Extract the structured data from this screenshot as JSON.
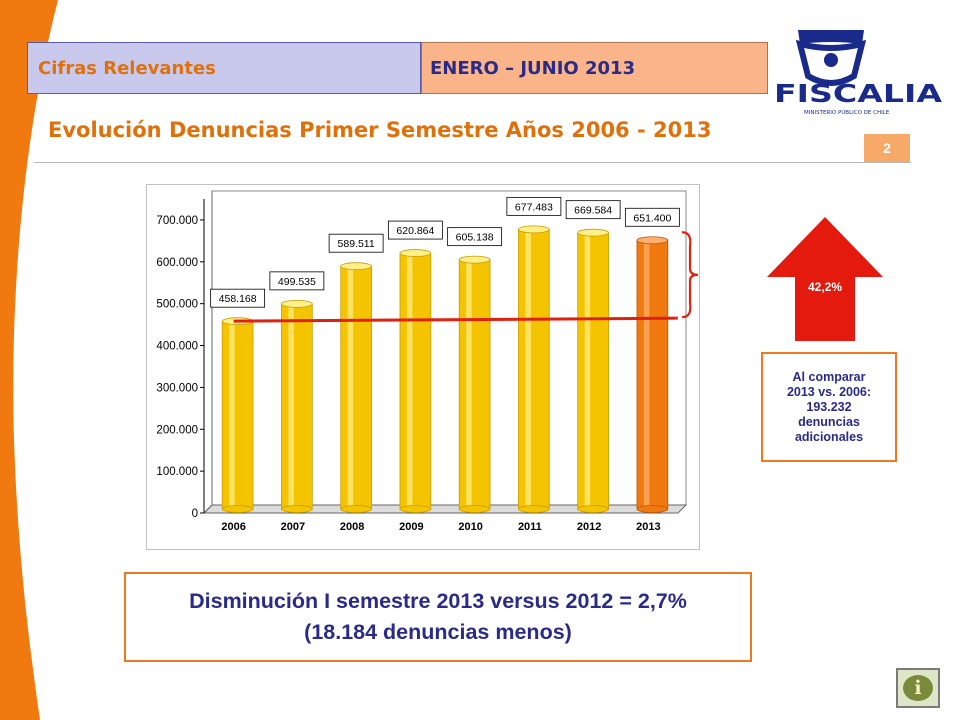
{
  "header": {
    "section_label": "Cifras Relevantes",
    "period_label": "ENERO – JUNIO 2013",
    "section_bg": "#c9c9ee",
    "period_bg": "#f9b48a"
  },
  "logo": {
    "name": "FISCALIA",
    "subtitle": "MINISTERIO PÚBLICO DE CHILE",
    "color": "#1a2a8a"
  },
  "page": {
    "title": "Evolución Denuncias Primer Semestre Años 2006 - 2013",
    "number": "2"
  },
  "chart_data": {
    "type": "bar",
    "categories": [
      "2006",
      "2007",
      "2008",
      "2009",
      "2010",
      "2011",
      "2012",
      "2013"
    ],
    "values": [
      458168,
      499535,
      589511,
      620864,
      605138,
      677483,
      669584,
      651400
    ],
    "value_labels": [
      "458.168",
      "499.535",
      "589.511",
      "620.864",
      "605.138",
      "677.483",
      "669.584",
      "651.400"
    ],
    "y_ticks": [
      {
        "value": 0,
        "label": "0"
      },
      {
        "value": 100000,
        "label": "100.000"
      },
      {
        "value": 200000,
        "label": "200.000"
      },
      {
        "value": 300000,
        "label": "300.000"
      },
      {
        "value": 400000,
        "label": "400.000"
      },
      {
        "value": 500000,
        "label": "500.000"
      },
      {
        "value": 600000,
        "label": "600.000"
      },
      {
        "value": 700000,
        "label": "700.000"
      }
    ],
    "ylim": [
      0,
      750000
    ],
    "reference_value": 458168,
    "bar_color": "#f5c400",
    "highlight_color": "#f07a10",
    "reference_line_color": "#e02010"
  },
  "growth": {
    "percent": "42,2%",
    "arrow_color": "#e41a0e"
  },
  "callout": {
    "lines": [
      "Al comparar",
      "2013 vs. 2006:",
      "193.232",
      "denuncias",
      "adicionales"
    ]
  },
  "summary": {
    "line1": "Disminución I semestre 2013 versus 2012 = 2,7%",
    "line2": "(18.184 denuncias menos)"
  },
  "info_button": {
    "glyph": "i"
  }
}
